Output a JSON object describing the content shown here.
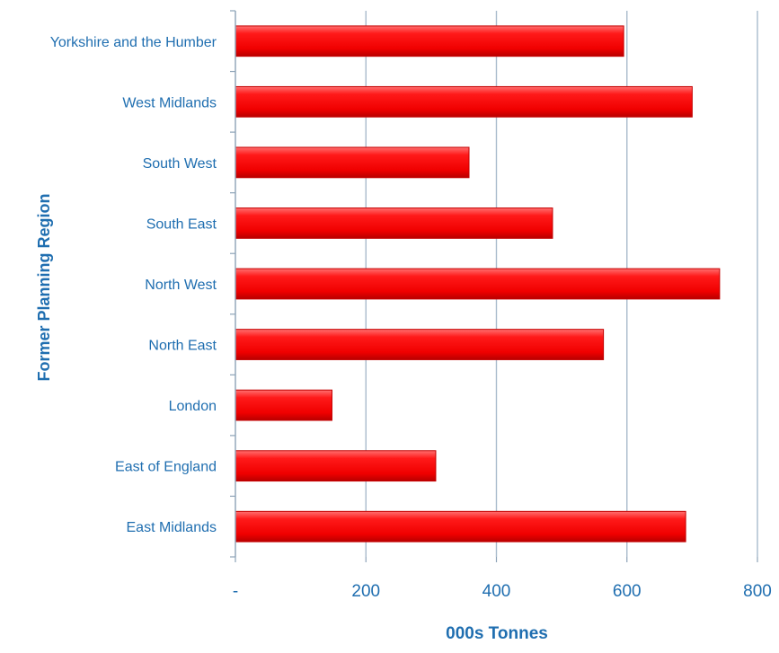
{
  "chart_data": {
    "type": "bar",
    "orientation": "horizontal",
    "categories": [
      "Yorkshire and the Humber",
      "West Midlands",
      "South West",
      "South East",
      "North West",
      "North East",
      "London",
      "East of England",
      "East Midlands"
    ],
    "values": [
      595,
      700,
      358,
      486,
      742,
      564,
      148,
      307,
      690
    ],
    "xlabel": "000s Tonnes",
    "ylabel": "Former Planning Region",
    "xlim": [
      0,
      800
    ],
    "xticks": [
      {
        "value": 0,
        "label": "-"
      },
      {
        "value": 200,
        "label": "200"
      },
      {
        "value": 400,
        "label": "400"
      },
      {
        "value": 600,
        "label": "600"
      },
      {
        "value": 800,
        "label": "800"
      }
    ],
    "grid": true,
    "colors": {
      "bar": "#ff0000",
      "bar_dark": "#c40000",
      "bar_light": "#ff6a6a",
      "text": "#1f6eb0",
      "grid": "#a9bbcc",
      "axis": "#8da3b7"
    }
  }
}
